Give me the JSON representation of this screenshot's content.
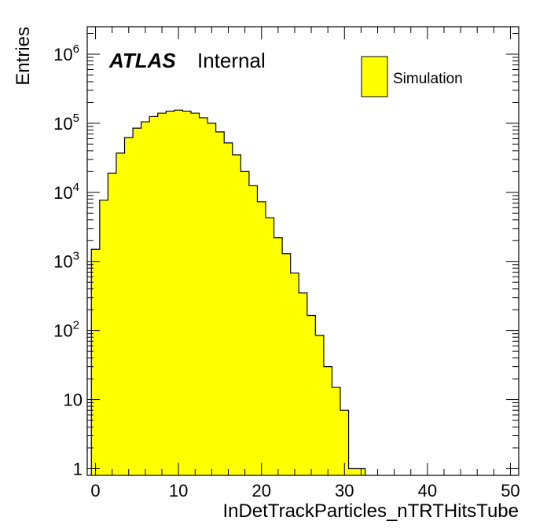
{
  "chart_data": {
    "type": "bar",
    "style": "step-histogram",
    "xlabel": "InDetTrackParticles_nTRTHitsTube",
    "ylabel": "Entries",
    "yscale": "log",
    "xlim": [
      -1,
      51
    ],
    "ylim": [
      0.8,
      2500000
    ],
    "x_tick_labels": [
      "0",
      "10",
      "20",
      "30",
      "40",
      "50"
    ],
    "y_tick_labels": [
      {
        "base": "1",
        "exp": ""
      },
      {
        "base": "10",
        "exp": ""
      },
      {
        "base": "10",
        "exp": "2"
      },
      {
        "base": "10",
        "exp": "3"
      },
      {
        "base": "10",
        "exp": "4"
      },
      {
        "base": "10",
        "exp": "5"
      },
      {
        "base": "10",
        "exp": "6"
      }
    ],
    "bin_width": 1,
    "bin_start": -0.5,
    "values": [
      1500,
      7700,
      19000,
      37000,
      62000,
      85000,
      105000,
      125000,
      140000,
      150000,
      155000,
      150000,
      140000,
      120000,
      100000,
      75000,
      52000,
      35000,
      20000,
      12500,
      7300,
      4300,
      2200,
      1300,
      680,
      350,
      165,
      85,
      30,
      15,
      7,
      1,
      1
    ],
    "fill_color": "#ffff00",
    "line_color": "#000000",
    "atlas_label": {
      "bold": "ATLAS",
      "text": "Internal"
    },
    "legend": [
      {
        "label": "Simulation",
        "color": "#ffff00"
      }
    ],
    "grid": false
  }
}
